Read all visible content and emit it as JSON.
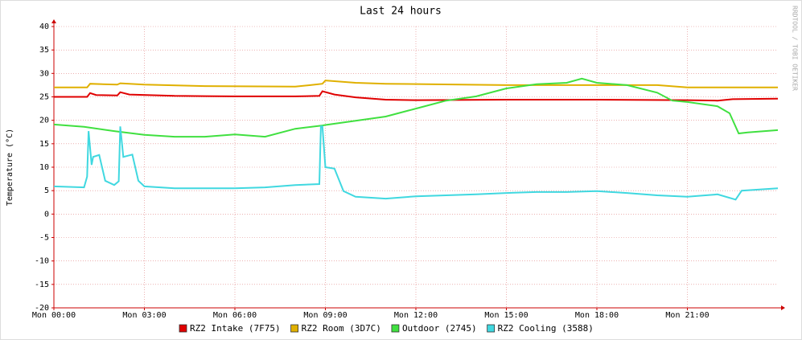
{
  "chart_data": {
    "type": "line",
    "title": "Last 24 hours",
    "y_label": "Temperature (°C)",
    "watermark": "RRDTOOL / TOBI OETIKER",
    "xlim": [
      0,
      24
    ],
    "xticks": [
      {
        "value": 0,
        "label": "Mon 00:00"
      },
      {
        "value": 3,
        "label": "Mon 03:00"
      },
      {
        "value": 6,
        "label": "Mon 06:00"
      },
      {
        "value": 9,
        "label": "Mon 09:00"
      },
      {
        "value": 12,
        "label": "Mon 12:00"
      },
      {
        "value": 15,
        "label": "Mon 15:00"
      },
      {
        "value": 18,
        "label": "Mon 18:00"
      },
      {
        "value": 21,
        "label": "Mon 21:00"
      }
    ],
    "ylim": [
      -20,
      40
    ],
    "yticks": [
      -20,
      -15,
      -10,
      -5,
      0,
      5,
      10,
      15,
      20,
      25,
      30,
      35,
      40
    ],
    "grid": true,
    "series": [
      {
        "name": "RZ2 Intake (7F75)",
        "color": "#e00000",
        "x": [
          0,
          1.1,
          1.2,
          1.4,
          2.1,
          2.2,
          2.5,
          4,
          6,
          8,
          8.8,
          8.9,
          9.3,
          10,
          11,
          12,
          15,
          18,
          21,
          22,
          22.5,
          24
        ],
        "values": [
          25,
          25,
          25.8,
          25.4,
          25.3,
          26,
          25.5,
          25.2,
          25.1,
          25.1,
          25.2,
          26.2,
          25.5,
          24.9,
          24.4,
          24.3,
          24.4,
          24.4,
          24.3,
          24.2,
          24.5,
          24.6
        ]
      },
      {
        "name": "RZ2 Room (3D7C)",
        "color": "#e0b000",
        "x": [
          0,
          1.1,
          1.2,
          2.1,
          2.2,
          3,
          5,
          8,
          8.5,
          8.9,
          9,
          10,
          11,
          15,
          18,
          20,
          21,
          24
        ],
        "values": [
          27,
          27,
          27.8,
          27.6,
          27.9,
          27.6,
          27.3,
          27.2,
          27.5,
          27.8,
          28.5,
          28,
          27.8,
          27.5,
          27.5,
          27.5,
          27,
          27
        ]
      },
      {
        "name": "Outdoor (2745)",
        "color": "#40e040",
        "x": [
          0,
          1,
          2,
          3,
          4,
          5,
          6,
          7,
          8,
          8.9,
          9,
          10,
          11,
          12,
          13,
          14,
          15,
          16,
          17,
          17.5,
          18,
          19,
          20,
          20.5,
          21,
          22,
          22.4,
          22.7,
          23,
          24
        ],
        "values": [
          19.1,
          18.6,
          17.7,
          16.9,
          16.5,
          16.5,
          17,
          16.5,
          18.2,
          18.9,
          19,
          19.9,
          20.8,
          22.5,
          24.2,
          25.1,
          26.8,
          27.7,
          28,
          28.9,
          28,
          27.5,
          25.9,
          24.2,
          23.9,
          23,
          21.5,
          17.2,
          17.4,
          17.9
        ]
      },
      {
        "name": "RZ2 Cooling (3588)",
        "color": "#40d8e0",
        "x": [
          0,
          1,
          1.1,
          1.15,
          1.25,
          1.3,
          1.5,
          1.7,
          2,
          2.15,
          2.2,
          2.3,
          2.6,
          2.8,
          3,
          4,
          5,
          6,
          7,
          8,
          8.8,
          8.85,
          8.9,
          9,
          9.3,
          9.6,
          10,
          11,
          12,
          13,
          14,
          15,
          16,
          17,
          18,
          19,
          20,
          21,
          22,
          22.6,
          22.8,
          24
        ],
        "values": [
          5.9,
          5.7,
          8,
          17.7,
          10.5,
          12.2,
          12.6,
          7.1,
          6.2,
          7,
          18.7,
          12.2,
          12.7,
          7.1,
          5.9,
          5.5,
          5.5,
          5.5,
          5.7,
          6.2,
          6.4,
          18.7,
          18.7,
          10,
          9.7,
          4.9,
          3.7,
          3.3,
          3.8,
          4,
          4.2,
          4.5,
          4.7,
          4.7,
          4.9,
          4.5,
          4,
          3.7,
          4.2,
          3.1,
          5,
          5.5
        ]
      }
    ]
  }
}
